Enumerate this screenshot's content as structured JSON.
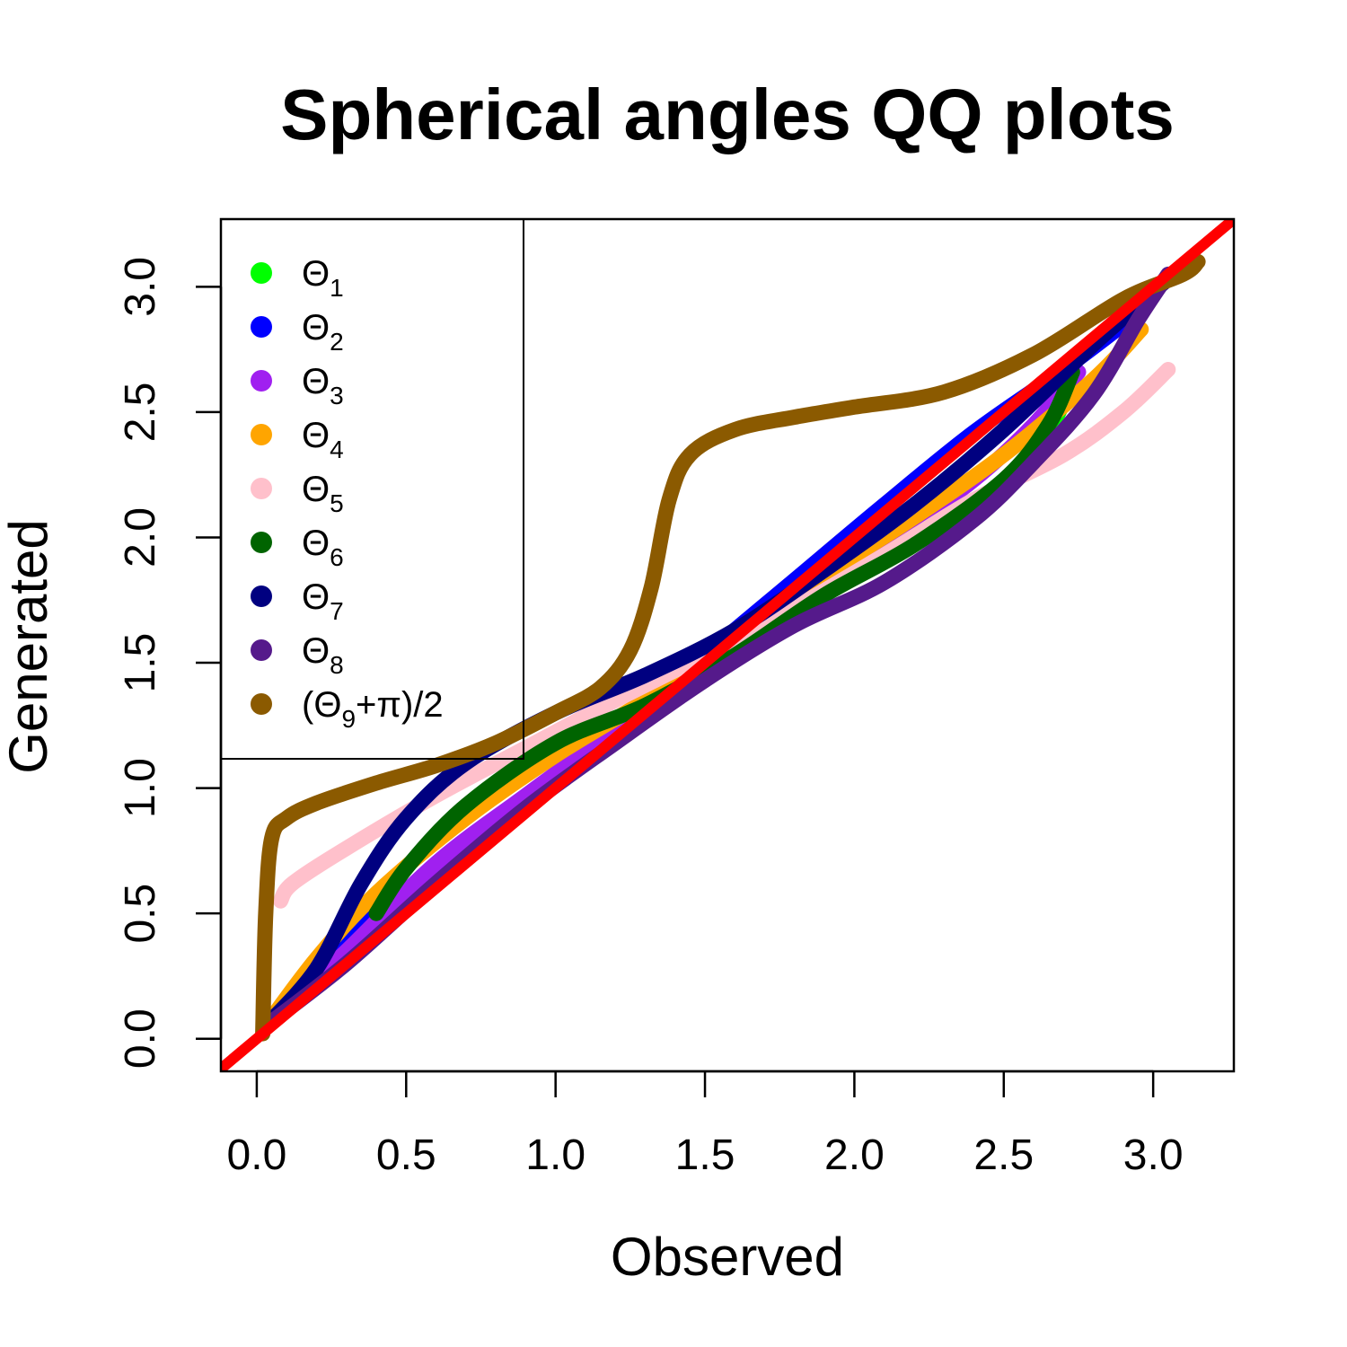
{
  "chart_data": {
    "type": "line",
    "title": "Spherical angles QQ plots",
    "xlabel": "Observed",
    "ylabel": "Generated",
    "xlim": [
      -0.12,
      3.27
    ],
    "ylim": [
      -0.13,
      3.27
    ],
    "x_ticks": [
      0.0,
      0.5,
      1.0,
      1.5,
      2.0,
      2.5,
      3.0
    ],
    "x_tick_labels": [
      "0.0",
      "0.5",
      "1.0",
      "1.5",
      "2.0",
      "2.5",
      "3.0"
    ],
    "y_ticks": [
      0.0,
      0.5,
      1.0,
      1.5,
      2.0,
      2.5,
      3.0
    ],
    "y_tick_labels": [
      "0.0",
      "0.5",
      "1.0",
      "1.5",
      "2.0",
      "2.5",
      "3.0"
    ],
    "legend_position": "top-left",
    "series": [
      {
        "key": "theta-1",
        "legend": {
          "main": "Θ",
          "sub": "1",
          "tail": ""
        },
        "color": "#00ff00",
        "x": [
          0.03,
          0.3,
          0.6,
          0.9,
          1.2,
          1.5,
          1.8,
          2.1,
          2.4,
          2.6,
          2.73
        ],
        "y": [
          0.05,
          0.32,
          0.62,
          0.95,
          1.25,
          1.5,
          1.72,
          1.92,
          2.13,
          2.32,
          2.62
        ]
      },
      {
        "key": "theta-2",
        "legend": {
          "main": "Θ",
          "sub": "2",
          "tail": ""
        },
        "color": "#0000ff",
        "x": [
          0.03,
          0.3,
          0.6,
          0.9,
          1.2,
          1.5,
          1.8,
          2.1,
          2.4,
          2.7,
          2.9,
          2.95
        ],
        "y": [
          0.05,
          0.4,
          0.68,
          0.93,
          1.22,
          1.53,
          1.83,
          2.13,
          2.42,
          2.67,
          2.85,
          2.9
        ]
      },
      {
        "key": "theta-3",
        "legend": {
          "main": "Θ",
          "sub": "3",
          "tail": ""
        },
        "color": "#a020f0",
        "x": [
          0.03,
          0.3,
          0.6,
          0.9,
          1.2,
          1.5,
          1.8,
          2.1,
          2.4,
          2.6,
          2.75
        ],
        "y": [
          0.05,
          0.35,
          0.7,
          0.97,
          1.23,
          1.48,
          1.73,
          1.97,
          2.23,
          2.45,
          2.66
        ]
      },
      {
        "key": "theta-4",
        "legend": {
          "main": "Θ",
          "sub": "4",
          "tail": ""
        },
        "color": "#ffa500",
        "x": [
          0.03,
          0.2,
          0.4,
          0.7,
          1.0,
          1.3,
          1.6,
          1.9,
          2.2,
          2.5,
          2.8,
          2.96
        ],
        "y": [
          0.05,
          0.32,
          0.58,
          0.88,
          1.13,
          1.35,
          1.6,
          1.85,
          2.08,
          2.33,
          2.63,
          2.83
        ]
      },
      {
        "key": "theta-5",
        "legend": {
          "main": "Θ",
          "sub": "5",
          "tail": ""
        },
        "color": "#ffc0cb",
        "x": [
          0.08,
          0.12,
          0.3,
          0.6,
          0.9,
          1.2,
          1.5,
          1.8,
          2.1,
          2.4,
          2.7,
          2.9,
          3.05
        ],
        "y": [
          0.55,
          0.62,
          0.76,
          0.97,
          1.16,
          1.35,
          1.53,
          1.72,
          1.93,
          2.15,
          2.33,
          2.5,
          2.67
        ]
      },
      {
        "key": "theta-6",
        "legend": {
          "main": "Θ",
          "sub": "6",
          "tail": ""
        },
        "color": "#006400",
        "x": [
          0.4,
          0.5,
          0.7,
          1.0,
          1.3,
          1.6,
          1.9,
          2.2,
          2.5,
          2.65,
          2.73
        ],
        "y": [
          0.5,
          0.68,
          0.93,
          1.18,
          1.33,
          1.53,
          1.77,
          1.97,
          2.23,
          2.45,
          2.66
        ]
      },
      {
        "key": "theta-7",
        "legend": {
          "main": "Θ",
          "sub": "7",
          "tail": ""
        },
        "color": "#000080",
        "x": [
          0.03,
          0.2,
          0.35,
          0.5,
          0.7,
          1.0,
          1.3,
          1.6,
          1.9,
          2.2,
          2.5,
          2.8,
          3.0,
          3.12
        ],
        "y": [
          0.05,
          0.28,
          0.62,
          0.88,
          1.1,
          1.3,
          1.45,
          1.63,
          1.87,
          2.13,
          2.43,
          2.77,
          2.98,
          3.1
        ]
      },
      {
        "key": "theta-8",
        "legend": {
          "main": "Θ",
          "sub": "8",
          "tail": ""
        },
        "color": "#551a8b",
        "x": [
          0.03,
          0.3,
          0.6,
          0.9,
          1.2,
          1.5,
          1.8,
          2.1,
          2.4,
          2.6,
          2.8,
          2.95,
          3.05
        ],
        "y": [
          0.05,
          0.3,
          0.62,
          0.92,
          1.18,
          1.43,
          1.65,
          1.82,
          2.07,
          2.3,
          2.57,
          2.87,
          3.05
        ]
      },
      {
        "key": "theta-9",
        "legend": {
          "main": "(Θ",
          "sub": "9",
          "tail": "+π)/2"
        },
        "color": "#8b5a00",
        "x": [
          0.02,
          0.03,
          0.05,
          0.1,
          0.2,
          0.4,
          0.6,
          0.8,
          1.0,
          1.15,
          1.25,
          1.32,
          1.38,
          1.45,
          1.6,
          1.8,
          2.0,
          2.3,
          2.6,
          2.9,
          3.1,
          3.15
        ],
        "y": [
          0.02,
          0.5,
          0.8,
          0.88,
          0.94,
          1.02,
          1.09,
          1.18,
          1.3,
          1.4,
          1.55,
          1.8,
          2.15,
          2.33,
          2.43,
          2.48,
          2.52,
          2.58,
          2.73,
          2.95,
          3.05,
          3.1
        ]
      },
      {
        "key": "reference-line",
        "color": "#ff0000",
        "x": [
          -0.12,
          3.27
        ],
        "y": [
          -0.12,
          3.27
        ]
      }
    ]
  }
}
